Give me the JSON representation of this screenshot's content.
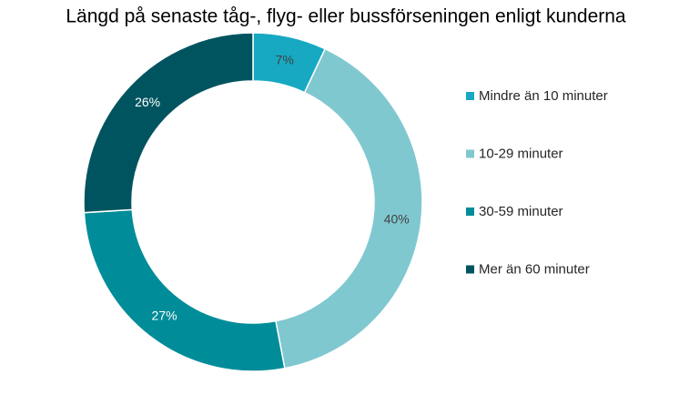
{
  "chart_data": {
    "type": "donut",
    "title": "Längd på senaste tåg-, flyg- eller bussförseningen enligt kunderna",
    "categories": [
      "Mindre än 10 minuter",
      "10-29 minuter",
      "30-59 minuter",
      "Mer än 60 minuter"
    ],
    "values": [
      7,
      40,
      27,
      26
    ],
    "value_labels": [
      "7%",
      "40%",
      "27%",
      "26%"
    ],
    "colors": [
      "#17a9c1",
      "#80c8d0",
      "#008c99",
      "#005460"
    ],
    "legend": "right"
  }
}
